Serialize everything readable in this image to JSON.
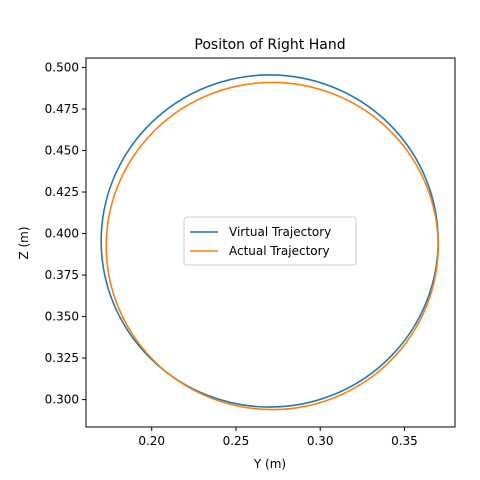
{
  "chart_data": {
    "type": "line",
    "title": "Positon of Right Hand",
    "xlabel": "Y (m)",
    "ylabel": "Z (m)",
    "xlim": [
      0.161,
      0.38
    ],
    "ylim": [
      0.2835,
      0.5057
    ],
    "xticks": [
      0.2,
      0.25,
      0.3,
      0.35
    ],
    "xtick_labels": [
      "0.20",
      "0.25",
      "0.30",
      "0.35"
    ],
    "yticks": [
      0.3,
      0.325,
      0.35,
      0.375,
      0.4,
      0.425,
      0.45,
      0.475,
      0.5
    ],
    "ytick_labels": [
      "0.300",
      "0.325",
      "0.350",
      "0.375",
      "0.400",
      "0.425",
      "0.450",
      "0.475",
      "0.500"
    ],
    "grid": false,
    "legend_position": "center",
    "series": [
      {
        "name": "Virtual Trajectory",
        "color": "#1f77b4",
        "shape": "circle",
        "center": [
          0.27,
          0.3955
        ],
        "radius": 0.1
      },
      {
        "name": "Actual Trajectory",
        "color": "#ff7f0e",
        "shape": "circle",
        "center": [
          0.2715,
          0.3925
        ],
        "radius": 0.0985
      }
    ]
  }
}
